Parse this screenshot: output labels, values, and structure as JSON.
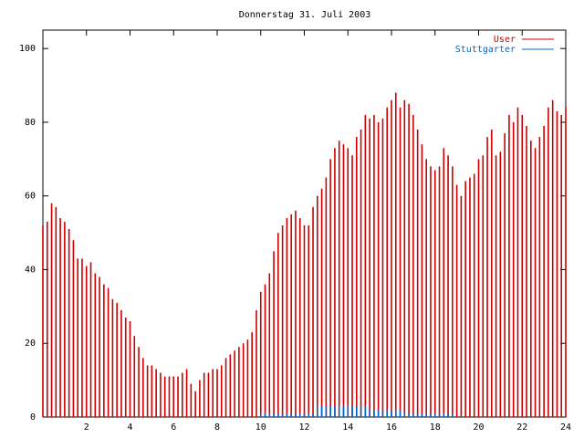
{
  "chart_data": {
    "type": "impulse",
    "title": "Donnerstag 31. Juli 2003",
    "x": [
      0,
      0.2,
      0.4,
      0.6,
      0.8,
      1,
      1.2,
      1.4,
      1.6,
      1.8,
      2,
      2.2,
      2.4,
      2.6,
      2.8,
      3,
      3.2,
      3.4,
      3.6,
      3.8,
      4,
      4.2,
      4.4,
      4.6,
      4.8,
      5,
      5.2,
      5.4,
      5.6,
      5.8,
      6,
      6.2,
      6.4,
      6.6,
      6.8,
      7,
      7.2,
      7.4,
      7.6,
      7.8,
      8,
      8.2,
      8.4,
      8.6,
      8.8,
      9,
      9.2,
      9.4,
      9.6,
      9.8,
      10,
      10.2,
      10.4,
      10.6,
      10.8,
      11,
      11.2,
      11.4,
      11.6,
      11.8,
      12,
      12.2,
      12.4,
      12.6,
      12.8,
      13,
      13.2,
      13.4,
      13.6,
      13.8,
      14,
      14.2,
      14.4,
      14.6,
      14.8,
      15,
      15.2,
      15.4,
      15.6,
      15.8,
      16,
      16.2,
      16.4,
      16.6,
      16.8,
      17,
      17.2,
      17.4,
      17.6,
      17.8,
      18,
      18.2,
      18.4,
      18.6,
      18.8,
      19,
      19.2,
      19.4,
      19.6,
      19.8,
      20,
      20.2,
      20.4,
      20.6,
      20.8,
      21,
      21.2,
      21.4,
      21.6,
      21.8,
      22,
      22.2,
      22.4,
      22.6,
      22.8,
      23,
      23.2,
      23.4,
      23.6,
      23.8,
      24
    ],
    "series": [
      {
        "name": "User",
        "color": "#cc0000",
        "values": [
          52,
          53,
          58,
          57,
          54,
          53,
          51,
          48,
          43,
          43,
          41,
          42,
          39,
          38,
          36,
          35,
          32,
          31,
          29,
          27,
          26,
          22,
          19,
          16,
          14,
          14,
          13,
          12,
          11,
          11,
          11,
          11,
          12,
          13,
          9,
          7,
          10,
          12,
          12,
          13,
          13,
          14,
          16,
          17,
          18,
          19,
          20,
          21,
          23,
          29,
          34,
          36,
          39,
          45,
          50,
          52,
          54,
          55,
          56,
          54,
          52,
          52,
          57,
          60,
          62,
          65,
          70,
          73,
          75,
          74,
          73,
          71,
          76,
          78,
          82,
          81,
          82,
          80,
          81,
          84,
          86,
          88,
          84,
          86,
          85,
          82,
          78,
          74,
          70,
          68,
          67,
          68,
          73,
          71,
          68,
          63,
          60,
          64,
          65,
          66,
          70,
          71,
          76,
          78,
          71,
          72,
          77,
          82,
          80,
          84,
          82,
          79,
          75,
          73,
          76,
          79,
          84,
          86,
          83,
          82,
          84
        ]
      },
      {
        "name": "Stuttgarter",
        "color": "#0066cc",
        "values": [
          0,
          0,
          0,
          0,
          0,
          0,
          0,
          0,
          0,
          0,
          0,
          0,
          0,
          0,
          0,
          0,
          0,
          0,
          0,
          0,
          0,
          0,
          0,
          0,
          0,
          0,
          0,
          0,
          0,
          0,
          0,
          0,
          0,
          0,
          0,
          0,
          0,
          0,
          0,
          0,
          0,
          0,
          0,
          0,
          0,
          0,
          0,
          0,
          0,
          0,
          1,
          1,
          1,
          1,
          1,
          1,
          1,
          1,
          1,
          1,
          1,
          1,
          1,
          3,
          3,
          3,
          3,
          3,
          3,
          3,
          3,
          3,
          3,
          3,
          3,
          2,
          2,
          2,
          2,
          2,
          2,
          2,
          2,
          1,
          1,
          1,
          1,
          1,
          1,
          1,
          1,
          1,
          1,
          1,
          1,
          0,
          0,
          0,
          0,
          0,
          0,
          0,
          0,
          0,
          0,
          0,
          0,
          0,
          0,
          0,
          0,
          0,
          0,
          0,
          0,
          0,
          0,
          0,
          0,
          0,
          0
        ]
      }
    ],
    "xlim": [
      0,
      24
    ],
    "xticks": [
      2,
      4,
      6,
      8,
      10,
      12,
      14,
      16,
      18,
      20,
      22,
      24
    ],
    "ylim": [
      0,
      105
    ],
    "yticks": [
      0,
      20,
      40,
      60,
      80,
      100
    ]
  }
}
